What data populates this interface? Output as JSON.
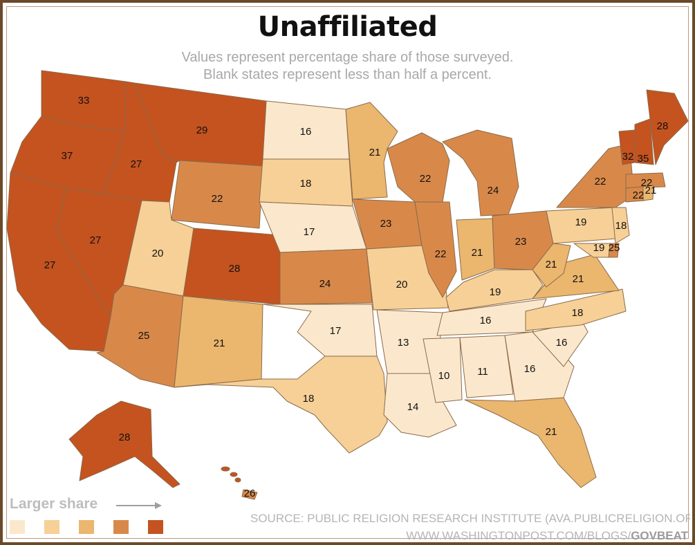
{
  "title": "Unaffiliated",
  "subtitle_line1": "Values represent percentage share of those surveyed.",
  "subtitle_line2": "Blank states represent less than half a percent.",
  "legend": {
    "label": "Larger share",
    "bins": [
      "#fbe8cc",
      "#f6d096",
      "#ebb66e",
      "#d8894a",
      "#c4531f"
    ]
  },
  "source": "SOURCE: PUBLIC RELIGION RESEARCH INSTITUTE (AVA.PUBLICRELIGION.ORG",
  "credit_prefix": "WWW.WASHINGTONPOST.COM/BLOGS/",
  "credit_brand": "GOVBEAT",
  "map_data": {
    "type": "choropleth",
    "metric": "Unaffiliated share (%)",
    "states": [
      {
        "id": "WA",
        "value": 33
      },
      {
        "id": "OR",
        "value": 37
      },
      {
        "id": "CA",
        "value": 27
      },
      {
        "id": "ID",
        "value": 27
      },
      {
        "id": "NV",
        "value": 27
      },
      {
        "id": "MT",
        "value": 29
      },
      {
        "id": "WY",
        "value": 22
      },
      {
        "id": "UT",
        "value": 20
      },
      {
        "id": "AZ",
        "value": 25
      },
      {
        "id": "CO",
        "value": 28
      },
      {
        "id": "NM",
        "value": 21
      },
      {
        "id": "ND",
        "value": 16
      },
      {
        "id": "SD",
        "value": 18
      },
      {
        "id": "NE",
        "value": 17
      },
      {
        "id": "KS",
        "value": 24
      },
      {
        "id": "OK",
        "value": 17
      },
      {
        "id": "TX",
        "value": 18
      },
      {
        "id": "MN",
        "value": 21
      },
      {
        "id": "IA",
        "value": 23
      },
      {
        "id": "MO",
        "value": 20
      },
      {
        "id": "AR",
        "value": 13
      },
      {
        "id": "LA",
        "value": 14
      },
      {
        "id": "WI",
        "value": 22
      },
      {
        "id": "IL",
        "value": 22
      },
      {
        "id": "MI",
        "value": 24
      },
      {
        "id": "IN",
        "value": 21
      },
      {
        "id": "OH",
        "value": 23
      },
      {
        "id": "KY",
        "value": 19
      },
      {
        "id": "TN",
        "value": 16
      },
      {
        "id": "MS",
        "value": 10
      },
      {
        "id": "AL",
        "value": 11
      },
      {
        "id": "GA",
        "value": 16
      },
      {
        "id": "FL",
        "value": 21
      },
      {
        "id": "SC",
        "value": 16
      },
      {
        "id": "NC",
        "value": 18
      },
      {
        "id": "VA",
        "value": 21
      },
      {
        "id": "WV",
        "value": 21
      },
      {
        "id": "PA",
        "value": 19
      },
      {
        "id": "NY",
        "value": 22
      },
      {
        "id": "NJ",
        "value": 18
      },
      {
        "id": "DE",
        "value": 25
      },
      {
        "id": "MD",
        "value": 19
      },
      {
        "id": "VT",
        "value": 32
      },
      {
        "id": "NH",
        "value": 35
      },
      {
        "id": "ME",
        "value": 28
      },
      {
        "id": "MA",
        "value": 22
      },
      {
        "id": "CT",
        "value": 22
      },
      {
        "id": "RI",
        "value": 21
      },
      {
        "id": "AK",
        "value": 28
      },
      {
        "id": "HI",
        "value": 26
      }
    ]
  }
}
